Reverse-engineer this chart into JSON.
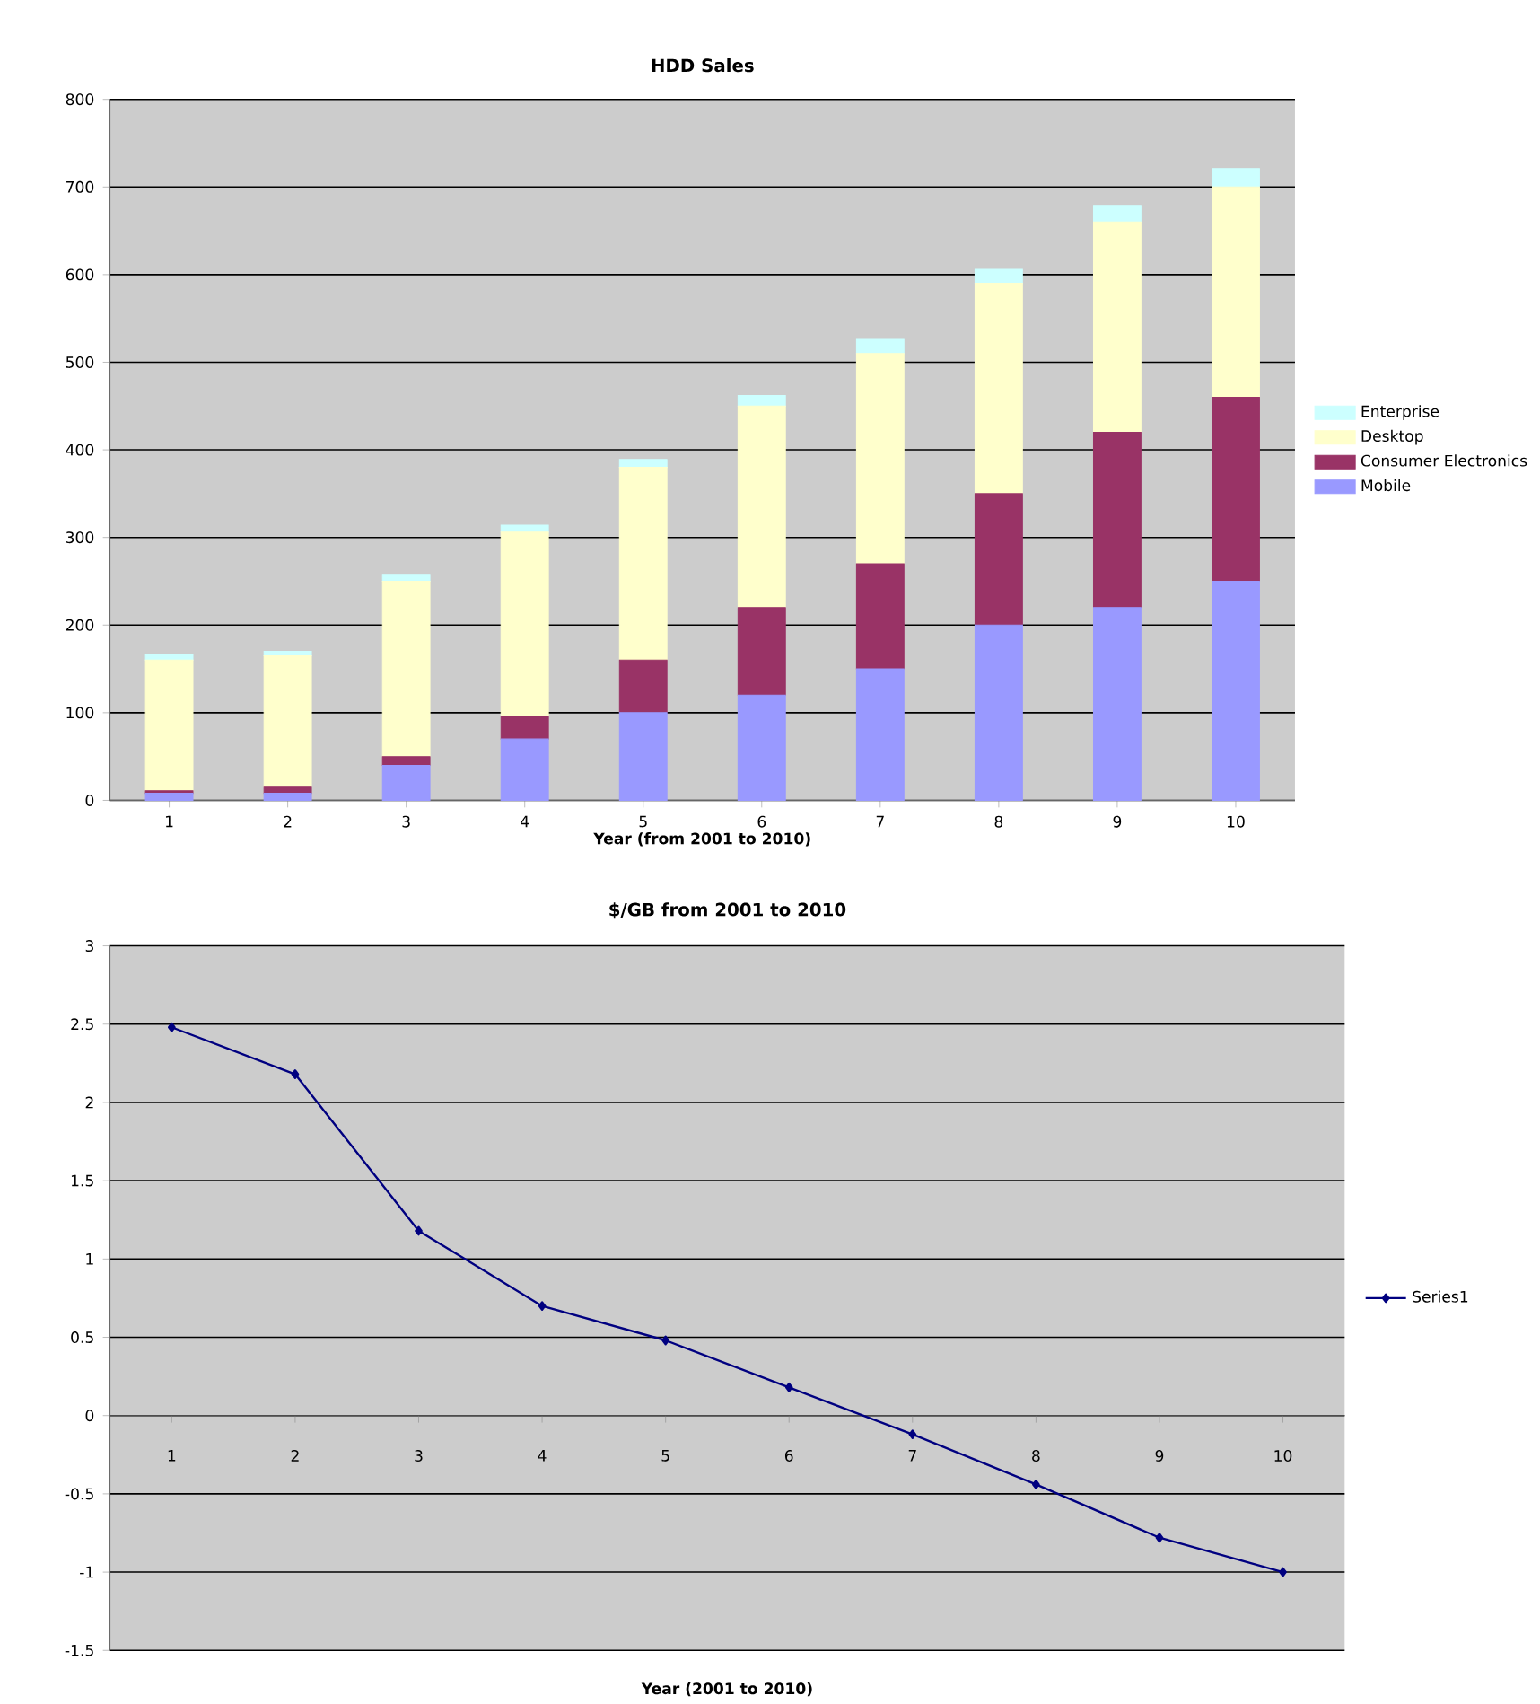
{
  "chart_data": [
    {
      "type": "bar",
      "stacked": true,
      "title": "HDD Sales",
      "xlabel": "Year (from 2001 to 2010)",
      "categories": [
        "1",
        "2",
        "3",
        "4",
        "5",
        "6",
        "7",
        "8",
        "9",
        "10"
      ],
      "series": [
        {
          "name": "Mobile",
          "color": "#9999ff",
          "values": [
            8,
            8,
            40,
            70,
            100,
            120,
            150,
            200,
            220,
            250
          ]
        },
        {
          "name": "Consumer Electronics",
          "color": "#993366",
          "values": [
            3,
            7,
            10,
            26,
            60,
            100,
            120,
            150,
            200,
            210
          ]
        },
        {
          "name": "Desktop",
          "color": "#ffffcc",
          "values": [
            149,
            150,
            200,
            210,
            220,
            230,
            240,
            240,
            240,
            240
          ]
        },
        {
          "name": "Enterprise",
          "color": "#ccffff",
          "values": [
            6,
            5,
            8,
            8,
            9,
            12,
            16,
            16,
            19,
            21
          ]
        }
      ],
      "ylim": [
        0,
        800
      ],
      "yticks": [
        0,
        100,
        200,
        300,
        400,
        500,
        600,
        700,
        800
      ],
      "grid": "y",
      "legend": "right"
    },
    {
      "type": "line",
      "title": "$/GB from 2001 to 2010",
      "xlabel": "Year (2001 to 2010)",
      "categories": [
        "1",
        "2",
        "3",
        "4",
        "5",
        "6",
        "7",
        "8",
        "9",
        "10"
      ],
      "series": [
        {
          "name": "Series1",
          "color": "#000080",
          "values": [
            2.48,
            2.18,
            1.18,
            0.7,
            0.48,
            0.18,
            -0.12,
            -0.44,
            -0.78,
            -1.0
          ]
        }
      ],
      "ylim": [
        -1.5,
        3
      ],
      "yticks": [
        -1.5,
        -1,
        -0.5,
        0,
        0.5,
        1,
        1.5,
        2,
        2.5,
        3
      ],
      "grid": "y",
      "legend": "right",
      "marker": "diamond",
      "line_style": "solid"
    }
  ]
}
